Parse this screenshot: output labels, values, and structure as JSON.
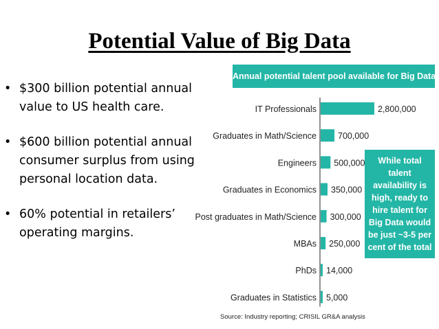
{
  "slide": {
    "title": "Potential Value of Big Data",
    "bullets": [
      "$300 billion potential annual value to US health care.",
      "$600 billion potential annual consumer surplus from using personal location data.",
      "60% potential in retailers’ operating margins."
    ]
  },
  "chart_data": {
    "type": "bar",
    "orientation": "horizontal",
    "title": "Annual potential talent pool available for Big Data in India",
    "categories": [
      "IT Professionals",
      "Graduates in Math/Science",
      "Engineers",
      "Graduates in Economics",
      "Post graduates in Math/Science",
      "MBAs",
      "PhDs",
      "Graduates in Statistics"
    ],
    "values": [
      2800000,
      700000,
      500000,
      350000,
      300000,
      250000,
      14000,
      5000
    ],
    "data_labels": [
      "2,800,000",
      "700,000",
      "500,000",
      "350,000",
      "300,000",
      "250,000",
      "14,000",
      "5,000"
    ],
    "annotation": "While total talent availability is high, ready to hire talent for Big Data would be just ~3-5 per cent of the total",
    "source": "Source: Industry reporting; CRISIL GR&A analysis",
    "bar_color": "#23b6a6",
    "xlabel": "",
    "ylabel": ""
  }
}
